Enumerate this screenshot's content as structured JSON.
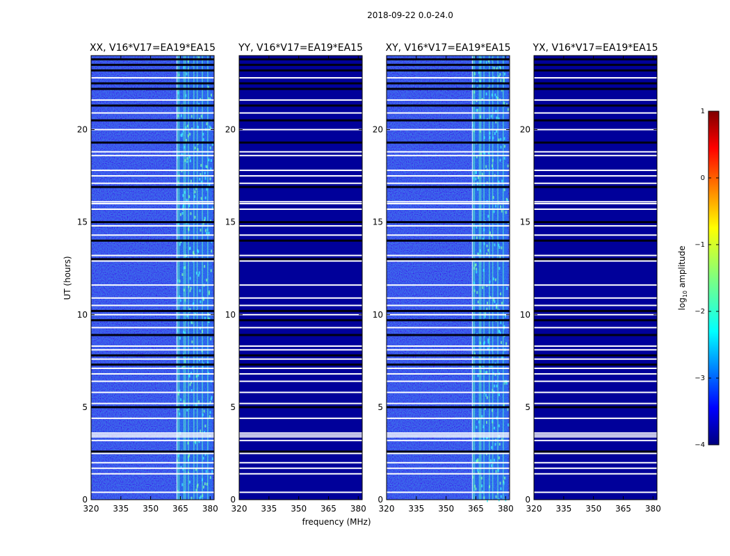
{
  "figure": {
    "suptitle": "2018-09-22 0.0-24.0"
  },
  "chart_data": {
    "type": "heatmap",
    "xlabel": "frequency (MHz)",
    "ylabel": "UT (hours)",
    "xlim": [
      320,
      382
    ],
    "ylim": [
      0,
      24
    ],
    "xticks": [
      "320",
      "335",
      "350",
      "365",
      "380"
    ],
    "yticks": [
      "0",
      "5",
      "10",
      "15",
      "20"
    ],
    "panels": [
      {
        "title": "XX, V16*V17=EA19*EA15",
        "signal": "strong"
      },
      {
        "title": "YY, V16*V17=EA19*EA15",
        "signal": "weak"
      },
      {
        "title": "XY, V16*V17=EA19*EA15",
        "signal": "strong"
      },
      {
        "title": "YX, V16*V17=EA19*EA15",
        "signal": "weak"
      }
    ],
    "rfi_band_mhz": [
      363,
      381
    ],
    "flagged_white_hours": [
      0.4,
      1.4,
      1.7,
      2.0,
      2.5,
      3.2,
      3.4,
      3.5,
      3.6,
      4.4,
      5.2,
      5.8,
      6.4,
      6.8,
      7.1,
      7.6,
      8.1,
      8.3,
      9.3,
      10.0,
      10.5,
      10.9,
      11.6,
      12.9,
      13.2,
      14.3,
      14.8,
      15.7,
      16.0,
      16.1,
      17.1,
      17.5,
      17.8,
      18.6,
      18.8,
      20.0,
      20.9,
      21.6,
      22.8
    ],
    "flagged_black_hours": [
      2.6,
      5.0,
      7.3,
      7.8,
      8.9,
      9.7,
      10.2,
      13.0,
      14.0,
      15.0,
      16.9,
      19.3,
      20.5,
      21.3,
      22.2,
      22.5,
      23.2,
      23.5,
      23.8
    ],
    "colorbar": {
      "label": "log10 amplitude",
      "range": [
        -4,
        1
      ],
      "ticks": [
        "1",
        "0",
        "−1",
        "−2",
        "−3",
        "−4"
      ],
      "tick_values": [
        1,
        0,
        -1,
        -2,
        -3,
        -4
      ]
    }
  }
}
